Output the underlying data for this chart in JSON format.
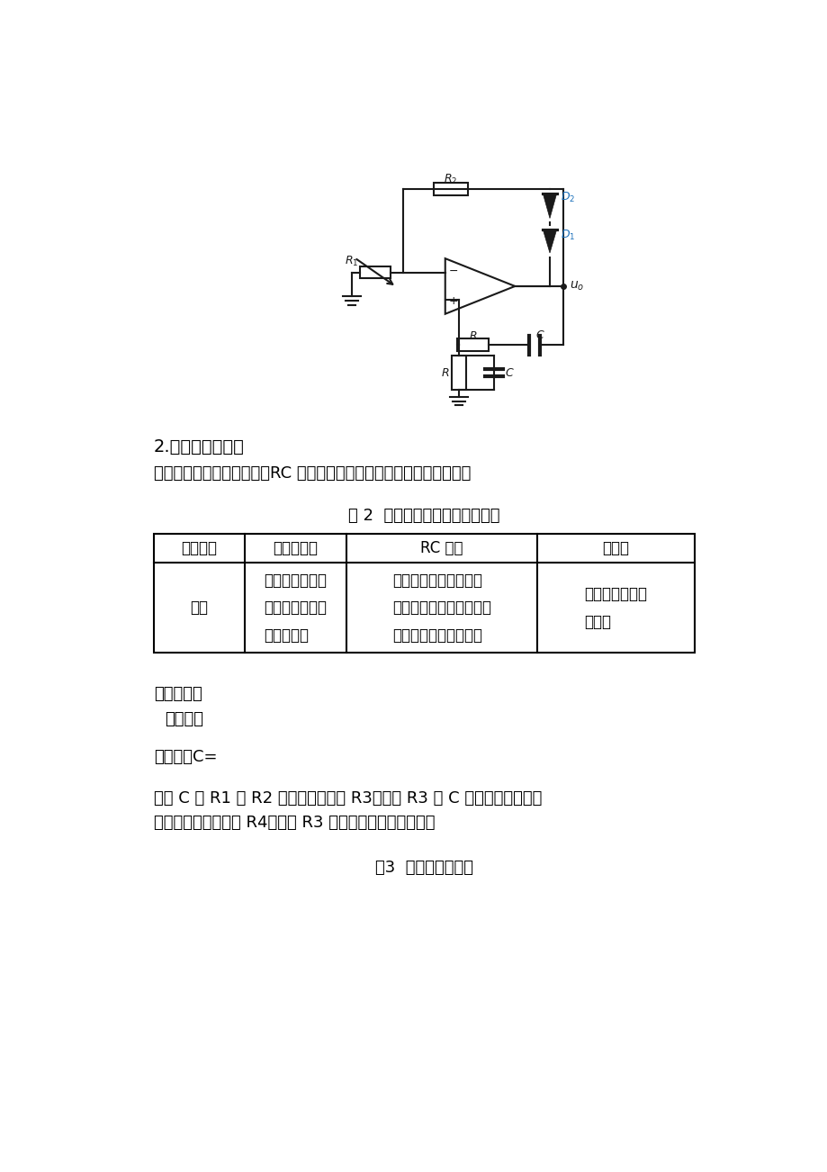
{
  "bg_color": "#ffffff",
  "circuit_title": "图3  方波信号发生器",
  "section_title": "2.方波信号发生器",
  "intro_text": "三部分组成：滞回比较器、RC 电路、稳压管，各部分实现功能如下表：",
  "table_title": "表 2  方波发生器各组成部分功能",
  "table_headers": [
    "组成部分",
    "滞回比较器",
    "RC 电路",
    "稳压管"
  ],
  "table_row1_label": "功能",
  "table_col1": "引入正反馈，产\n生振荡，具有抗\n干扰能力。",
  "table_col2": "作为延迟环节和反馈网\n络，通过对电容的充放电\n实现两种状态的转换。",
  "table_col3": "输出需要的方波\n电压。",
  "param_title": "参数选择：",
  "param_sub": "振荡周期",
  "param_c": "可选择：C=",
  "note1": "根据 C 及 R1 和 R2 的比值可以确定 R3，调节 R3 或 C 可以改变振荡率。",
  "note2": "选择合适的稳压管和 R4，调节 R3 使电路振荡到所需频率。",
  "lw": 1.5,
  "circuit_color": "#1a1a1a",
  "d_color": "#1a6fba"
}
